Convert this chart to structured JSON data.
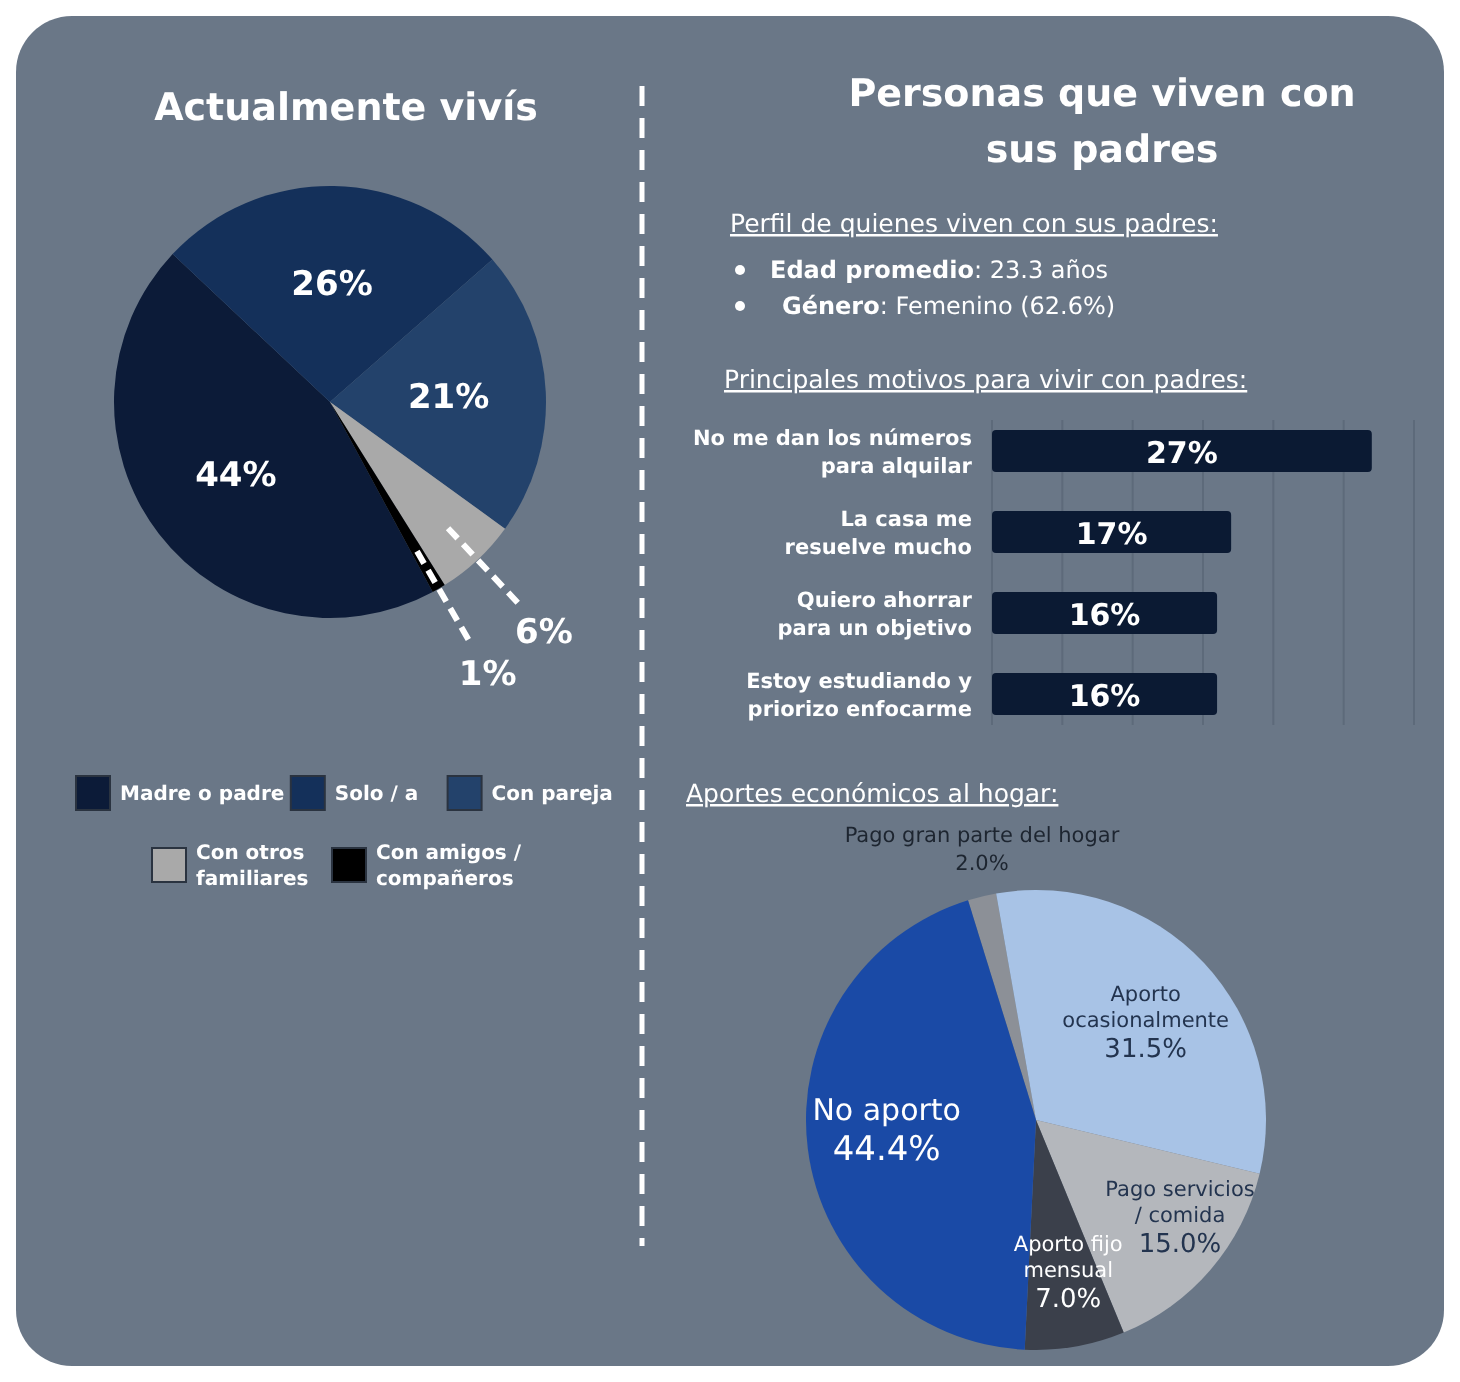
{
  "chart_data": [
    {
      "type": "pie",
      "title": "Actualmente vivís",
      "categories": [
        "Madre o padre",
        "Solo / a",
        "Con pareja",
        "Con otros familiares",
        "Con amigos / compañeros"
      ],
      "values": [
        44,
        26,
        21,
        6,
        1
      ],
      "colors": [
        "#0c1b38",
        "#14305a",
        "#23426b",
        "#a9a9a9",
        "#000000"
      ],
      "value_labels": [
        "44%",
        "26%",
        "21%",
        "6%",
        "1%"
      ],
      "legend": "bottom"
    },
    {
      "type": "other",
      "title": "Personas que viven con sus padres",
      "annotations": [
        "Perfil de quienes viven con sus padres:",
        "Edad promedio: 23.3 años",
        "Género: Femenino (62.6%)"
      ]
    },
    {
      "type": "bar",
      "orientation": "horizontal",
      "title": "Principales motivos para vivir con padres:",
      "categories": [
        "No me dan los números para alquilar",
        "La casa me resuelve mucho",
        "Quiero ahorrar para un objetivo",
        "Estoy estudiando y priorizo enfocarme"
      ],
      "values": [
        27,
        17,
        16,
        16
      ],
      "color": "#0b1a33",
      "value_labels": [
        "27%",
        "17%",
        "16%",
        "16%"
      ],
      "xlim": [
        0,
        30
      ],
      "xticks": [
        {
          "value": 0,
          "label": null
        },
        {
          "value": 5,
          "label": null
        },
        {
          "value": 10,
          "label": null
        },
        {
          "value": 15,
          "label": null
        },
        {
          "value": 20,
          "label": null
        },
        {
          "value": 25,
          "label": null
        },
        {
          "value": 30,
          "label": null
        }
      ],
      "grid": "x",
      "tick_labels": "y"
    },
    {
      "type": "pie",
      "title": "Aportes económicos al hogar:",
      "categories": [
        "Pago gran parte del hogar",
        "Aporto ocasionalmente",
        "Pago servicios / comida",
        "Aporto fijo mensual",
        "No aporto"
      ],
      "values": [
        2.0,
        31.5,
        15.0,
        7.0,
        44.4
      ],
      "colors": [
        "#8c9097",
        "#a8c3e6",
        "#b4b7bc",
        "#3b404b",
        "#1a4aa6"
      ],
      "value_labels": [
        "2.0%",
        "31.5%",
        "15.0%",
        "7.0%",
        "44.4%"
      ]
    }
  ]
}
